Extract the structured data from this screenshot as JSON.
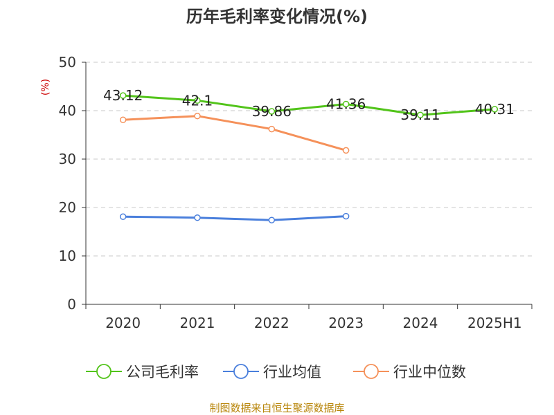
{
  "chart_data": {
    "type": "line",
    "title": "历年毛利率变化情况(%)",
    "ylabel": "(%)",
    "xlabel": "",
    "categories": [
      "2020",
      "2021",
      "2022",
      "2023",
      "2024",
      "2025H1"
    ],
    "ylim": [
      0,
      50
    ],
    "yticks": [
      0,
      10,
      20,
      30,
      40,
      50
    ],
    "grid": true,
    "legend_position": "bottom",
    "series": [
      {
        "name": "公司毛利率",
        "color": "#52c41a",
        "values": [
          43.12,
          42.1,
          39.86,
          41.36,
          39.11,
          40.31
        ],
        "labels": [
          "43.12",
          "42.1",
          "39.86",
          "41.36",
          "39.11",
          "40.31"
        ]
      },
      {
        "name": "行业均值",
        "color": "#4a7fdc",
        "values": [
          18.1,
          17.9,
          17.4,
          18.2,
          null,
          null
        ]
      },
      {
        "name": "行业中位数",
        "color": "#f5915a",
        "values": [
          38.1,
          38.9,
          36.2,
          31.8,
          null,
          null
        ]
      }
    ],
    "source": "制图数据来自恒生聚源数据库"
  }
}
